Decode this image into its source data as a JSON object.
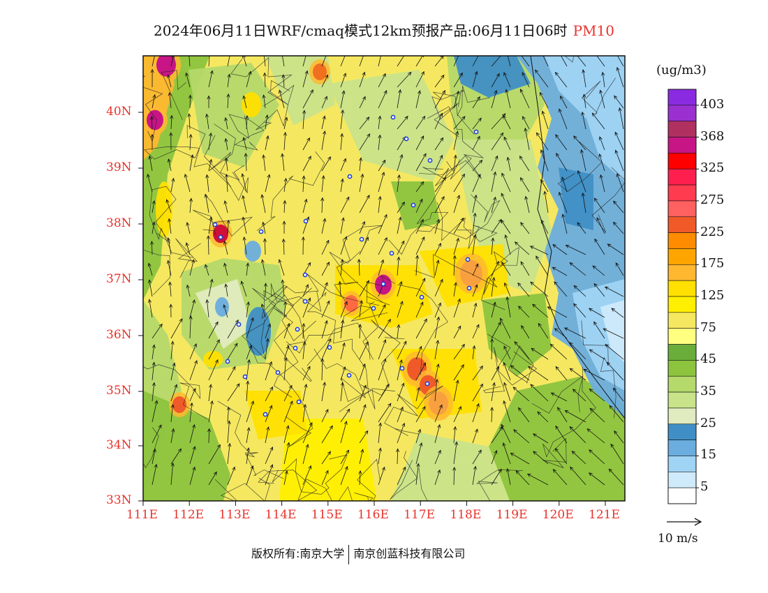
{
  "title": "2024年06月11日WRF/cmaq模式12km预报产品:06月11日06时",
  "pollutant": "PM10",
  "unit": "(ug/m3)",
  "footer": {
    "left": "版权所有:南京大学",
    "right": "南京创蓝科技有限公司"
  },
  "wind_ref": "10 m/s",
  "lat_labels": [
    "40N",
    "39N",
    "38N",
    "37N",
    "36N",
    "35N",
    "34N",
    "33N"
  ],
  "lon_labels": [
    "111E",
    "112E",
    "113E",
    "114E",
    "115E",
    "116E",
    "117E",
    "118E",
    "119E",
    "120E",
    "121E"
  ],
  "legend": {
    "colors": [
      "#8a2be2",
      "#9b30d0",
      "#b03060",
      "#c71585",
      "#ff0000",
      "#ff1f4f",
      "#ff3b4f",
      "#ff6060",
      "#f05a28",
      "#ff8c00",
      "#ffa500",
      "#ffb830",
      "#ffe000",
      "#ffef00",
      "#f5e860",
      "#ffff80",
      "#6aad3a",
      "#8cc43e",
      "#b5d96a",
      "#c9e38a",
      "#e0ecbf",
      "#3f8fc6",
      "#6aadde",
      "#9fd4f4",
      "#cfeafb",
      "#ffffff"
    ],
    "labels": [
      "403",
      "368",
      "325",
      "275",
      "225",
      "175",
      "125",
      "75",
      "45",
      "35",
      "25",
      "15",
      "5"
    ]
  },
  "stations": [
    [
      563,
      168
    ],
    [
      582,
      199
    ],
    [
      616,
      230
    ],
    [
      682,
      189
    ],
    [
      501,
      253
    ],
    [
      592,
      294
    ],
    [
      308,
      322
    ],
    [
      316,
      340
    ],
    [
      374,
      332
    ],
    [
      438,
      317
    ],
    [
      518,
      343
    ],
    [
      561,
      363
    ],
    [
      670,
      372
    ],
    [
      672,
      413
    ],
    [
      437,
      394
    ],
    [
      549,
      407
    ],
    [
      604,
      426
    ],
    [
      535,
      442
    ],
    [
      437,
      432
    ],
    [
      342,
      465
    ],
    [
      426,
      472
    ],
    [
      472,
      498
    ],
    [
      423,
      499
    ],
    [
      326,
      518
    ],
    [
      500,
      538
    ],
    [
      576,
      528
    ],
    [
      612,
      550
    ],
    [
      398,
      534
    ],
    [
      351,
      540
    ],
    [
      428,
      576
    ],
    [
      380,
      594
    ]
  ],
  "hotspots": [
    [
      238,
      93,
      14,
      "#c71585"
    ],
    [
      222,
      172,
      12,
      "#c71585"
    ],
    [
      316,
      335,
      11,
      "#d0103a"
    ],
    [
      549,
      408,
      12,
      "#c71585"
    ],
    [
      503,
      435,
      10,
      "#ff6a40"
    ],
    [
      597,
      529,
      14,
      "#f05a28"
    ],
    [
      613,
      552,
      12,
      "#f05a28"
    ],
    [
      628,
      578,
      14,
      "#f8a040"
    ],
    [
      675,
      392,
      16,
      "#f8a040"
    ],
    [
      257,
      580,
      10,
      "#f05a28"
    ],
    [
      458,
      103,
      10,
      "#f07020"
    ]
  ]
}
